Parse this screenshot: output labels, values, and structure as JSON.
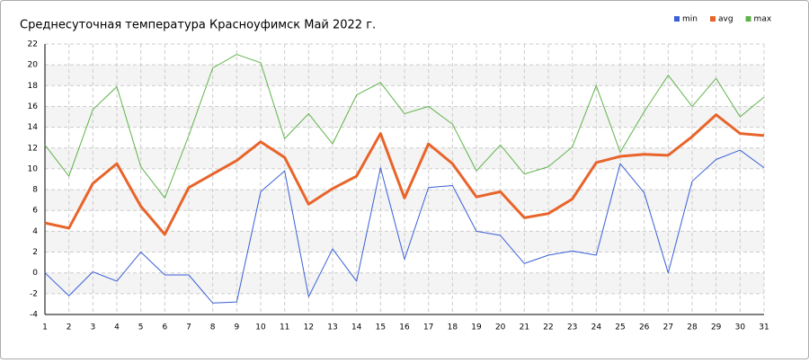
{
  "chart_data": {
    "type": "line",
    "title": "Среднесуточная температура Красноуфимск  Май 2022 г.",
    "x": [
      1,
      2,
      3,
      4,
      5,
      6,
      7,
      8,
      9,
      10,
      11,
      12,
      13,
      14,
      15,
      16,
      17,
      18,
      19,
      20,
      21,
      22,
      23,
      24,
      25,
      26,
      27,
      28,
      29,
      30,
      31
    ],
    "xlim": [
      1,
      31
    ],
    "xticks": [
      1,
      2,
      3,
      4,
      5,
      6,
      7,
      8,
      9,
      10,
      11,
      12,
      13,
      14,
      15,
      16,
      17,
      18,
      19,
      20,
      21,
      22,
      23,
      24,
      25,
      26,
      27,
      28,
      29,
      30,
      31
    ],
    "ylim": [
      -4,
      22
    ],
    "yticks": [
      -4,
      -2,
      0,
      2,
      4,
      6,
      8,
      10,
      12,
      14,
      16,
      18,
      20,
      22
    ],
    "grid": true,
    "legend": "top-right",
    "series": [
      {
        "name": "min",
        "color": "#3a5fd6",
        "width": 1,
        "values": [
          0,
          -2.2,
          0.1,
          -0.8,
          2.0,
          -0.2,
          -0.2,
          -2.9,
          -2.8,
          7.8,
          9.8,
          -2.3,
          2.3,
          -0.8,
          10.1,
          1.3,
          8.2,
          8.4,
          4.0,
          3.6,
          0.9,
          1.7,
          2.1,
          1.7,
          10.5,
          7.7,
          0,
          8.8,
          10.9,
          11.8,
          10.1
        ]
      },
      {
        "name": "avg",
        "color": "#e8642a",
        "width": 3,
        "values": [
          4.8,
          4.3,
          8.6,
          10.5,
          6.4,
          3.7,
          8.2,
          9.5,
          10.8,
          12.6,
          11.1,
          6.6,
          8.1,
          9.3,
          13.4,
          7.2,
          12.4,
          10.5,
          7.3,
          7.8,
          5.3,
          5.7,
          7.1,
          10.6,
          11.2,
          11.4,
          11.3,
          13.1,
          15.2,
          13.4,
          13.2
        ]
      },
      {
        "name": "max",
        "color": "#5fb34a",
        "width": 1,
        "values": [
          12.3,
          9.3,
          15.7,
          17.9,
          10.2,
          7.2,
          13.2,
          19.7,
          21.0,
          20.2,
          12.9,
          15.3,
          12.4,
          17.1,
          18.3,
          15.3,
          16.0,
          14.3,
          9.8,
          12.3,
          9.5,
          10.2,
          12.1,
          18.0,
          11.6,
          15.5,
          19.0,
          16.0,
          18.7,
          15.0,
          16.9
        ]
      }
    ]
  }
}
